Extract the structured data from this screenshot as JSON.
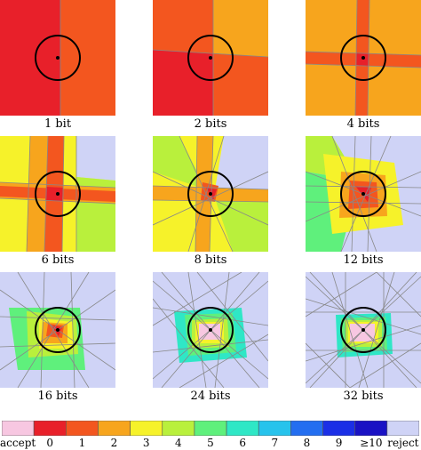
{
  "panels": [
    {
      "caption": "1 bit"
    },
    {
      "caption": "2 bits"
    },
    {
      "caption": "4 bits"
    },
    {
      "caption": "6 bits"
    },
    {
      "caption": "8 bits"
    },
    {
      "caption": "12 bits"
    },
    {
      "caption": "16 bits"
    },
    {
      "caption": "24 bits"
    },
    {
      "caption": "32 bits"
    }
  ],
  "legend": {
    "items": [
      {
        "label": "accept",
        "color": "#f7c7e1"
      },
      {
        "label": "0",
        "color": "#e8202a"
      },
      {
        "label": "1",
        "color": "#f3561f"
      },
      {
        "label": "2",
        "color": "#f7a51d"
      },
      {
        "label": "3",
        "color": "#f6f22a"
      },
      {
        "label": "4",
        "color": "#b9f03c"
      },
      {
        "label": "5",
        "color": "#5ff07c"
      },
      {
        "label": "6",
        "color": "#2fe7c6"
      },
      {
        "label": "7",
        "color": "#27c3ec"
      },
      {
        "label": "8",
        "color": "#236ef0"
      },
      {
        "label": "9",
        "color": "#1b2fe6"
      },
      {
        "label": "≥10",
        "color": "#1a12c4"
      },
      {
        "label": "reject",
        "color": "#cfd3f6"
      }
    ]
  }
}
